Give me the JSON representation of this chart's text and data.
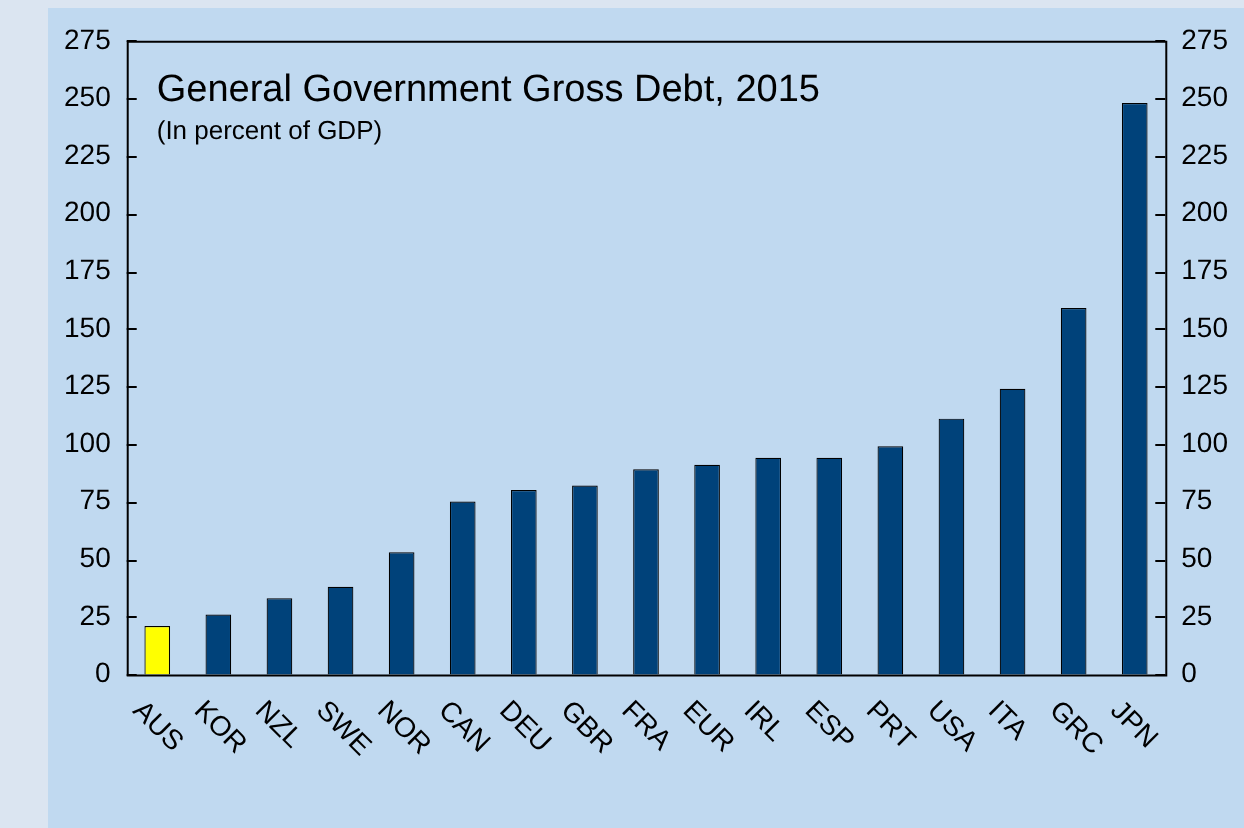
{
  "chart_data": {
    "type": "bar",
    "title": "General Government Gross Debt, 2015",
    "subtitle": "(In percent of GDP)",
    "categories": [
      "AUS",
      "KOR",
      "NZL",
      "SWE",
      "NOR",
      "CAN",
      "DEU",
      "GBR",
      "FRA",
      "EUR",
      "IRL",
      "ESP",
      "PRT",
      "USA",
      "ITA",
      "GRC",
      "JPN"
    ],
    "values": [
      21,
      26,
      33,
      38,
      53,
      75,
      80,
      82,
      89,
      91,
      94,
      94,
      99,
      111,
      124,
      159,
      248
    ],
    "colors": [
      "#ffff00",
      "#00427a",
      "#00427a",
      "#00427a",
      "#00427a",
      "#00427a",
      "#00427a",
      "#00427a",
      "#00427a",
      "#00427a",
      "#00427a",
      "#00427a",
      "#00427a",
      "#00427a",
      "#00427a",
      "#00427a",
      "#00427a"
    ],
    "ylim": [
      0,
      275
    ],
    "yticks": [
      0,
      25,
      50,
      75,
      100,
      125,
      150,
      175,
      200,
      225,
      250,
      275
    ],
    "y2lim": [
      0,
      275
    ],
    "y2ticks": [
      0,
      25,
      50,
      75,
      100,
      125,
      150,
      175,
      200,
      225,
      250,
      275
    ],
    "grid": false,
    "legend": false
  }
}
